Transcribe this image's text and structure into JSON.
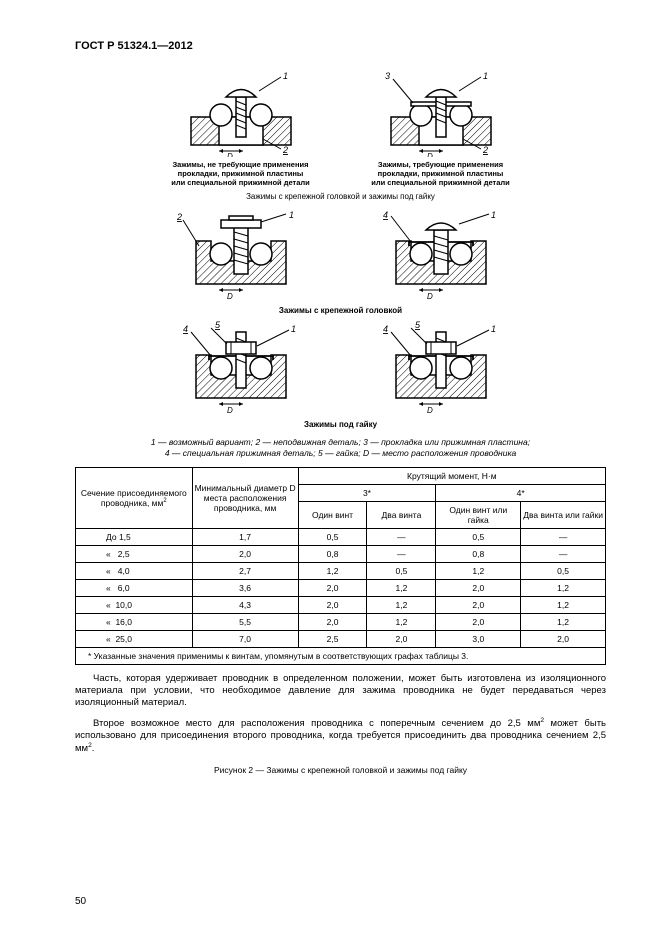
{
  "doc_ref": "ГОСТ Р 51324.1—2012",
  "page_number": "50",
  "row1": {
    "left_caption": "Зажимы, не требующие применения\nпрокладки, прижимной пластины\nили специальной прижимной детали",
    "right_caption": "Зажимы, требующие применения\nпрокладки, прижимной пластины\nили специальной прижимной детали"
  },
  "section_top": "Зажимы с крепежной головкой и зажимы под гайку",
  "section_mid": "Зажимы с крепежной головкой",
  "section_bot": "Зажимы под гайку",
  "legend_line1": "1 — возможный вариант; 2 — неподвижная деталь; 3 — прокладка или прижимная пластина;",
  "legend_line2": "4 — специальная прижимная деталь; 5 — гайка; D — место расположения проводника",
  "table": {
    "header_col1": "Сечение присоединяемо­го проводника, мм",
    "header_col2": "Минимальный диаметр D места расположения проводника, мм",
    "header_top": "Крутящий момент, Н·м",
    "group3": "3*",
    "group4": "4*",
    "sub_a": "Один винт",
    "sub_b": "Два винта",
    "sub_c": "Один винт или гайка",
    "sub_d": "Два винта или гайки",
    "rows": [
      {
        "c0": "До 1,5",
        "c1": "1,7",
        "c2": "0,5",
        "c3": "—",
        "c4": "0,5",
        "c5": "—"
      },
      {
        "c0": "«   2,5",
        "c1": "2,0",
        "c2": "0,8",
        "c3": "—",
        "c4": "0,8",
        "c5": "—"
      },
      {
        "c0": "«   4,0",
        "c1": "2,7",
        "c2": "1,2",
        "c3": "0,5",
        "c4": "1,2",
        "c5": "0,5"
      },
      {
        "c0": "«   6,0",
        "c1": "3,6",
        "c2": "2,0",
        "c3": "1,2",
        "c4": "2,0",
        "c5": "1,2"
      },
      {
        "c0": "«  10,0",
        "c1": "4,3",
        "c2": "2,0",
        "c3": "1,2",
        "c4": "2,0",
        "c5": "1,2"
      },
      {
        "c0": "«  16,0",
        "c1": "5,5",
        "c2": "2,0",
        "c3": "1,2",
        "c4": "2,0",
        "c5": "1,2"
      },
      {
        "c0": "«  25,0",
        "c1": "7,0",
        "c2": "2,5",
        "c3": "2,0",
        "c4": "3,0",
        "c5": "2,0"
      }
    ],
    "footnote": "*  Указанные значения применимы к винтам, упомянутым в соответствующих графах таблицы 3."
  },
  "para1": "Часть, которая удерживает проводник в определенном положении, может быть изготовлена из изоляционного материала при условии, что необходимое давление для зажима проводника не будет передаваться через изоляционный материал.",
  "para2_a": "Второе возможное место для расположения проводника с поперечным сечением до 2,5 мм",
  "para2_b": " может быть использовано для присоединения второго проводника, когда требуется присоединить два прово­дника сечением 2,5 мм",
  "fig_caption": "Рисунок 2 — Зажимы с крепежной головкой и зажимы под гайку",
  "diagram": {
    "hatch_color": "#000000",
    "bg": "#ffffff",
    "line_width": 1.5
  }
}
